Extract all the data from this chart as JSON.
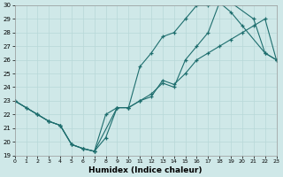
{
  "xlabel": "Humidex (Indice chaleur)",
  "bg_color": "#cfe8e8",
  "line_color": "#1e6e6e",
  "grid_color": "#b8d8d8",
  "xlim": [
    0,
    23
  ],
  "ylim": [
    19,
    30
  ],
  "xticks": [
    0,
    1,
    2,
    3,
    4,
    5,
    6,
    7,
    8,
    9,
    10,
    11,
    12,
    13,
    14,
    15,
    16,
    17,
    18,
    19,
    20,
    21,
    22,
    23
  ],
  "yticks": [
    19,
    20,
    21,
    22,
    23,
    24,
    25,
    26,
    27,
    28,
    29,
    30
  ],
  "line1_x": [
    0,
    1,
    2,
    3,
    4,
    5,
    6,
    7,
    8,
    9,
    10,
    11,
    12,
    13,
    14,
    15,
    16,
    17,
    18,
    19,
    20,
    21,
    22,
    23
  ],
  "line1_y": [
    23.0,
    22.5,
    22.0,
    21.5,
    21.2,
    19.8,
    19.5,
    19.3,
    22.0,
    22.5,
    22.5,
    23.0,
    23.3,
    24.5,
    24.2,
    25.0,
    26.0,
    26.5,
    27.0,
    27.5,
    28.0,
    28.5,
    29.0,
    26.0
  ],
  "line2_x": [
    0,
    1,
    2,
    3,
    4,
    5,
    6,
    7,
    9,
    10,
    11,
    12,
    13,
    14,
    15,
    16,
    17,
    18,
    19,
    20,
    22,
    23
  ],
  "line2_y": [
    23.0,
    22.5,
    22.0,
    21.5,
    21.2,
    19.8,
    19.5,
    19.3,
    22.5,
    22.5,
    25.5,
    26.5,
    27.7,
    28.0,
    29.0,
    30.0,
    30.0,
    30.2,
    29.5,
    28.5,
    26.5,
    26.0
  ],
  "line3_x": [
    0,
    2,
    3,
    4,
    5,
    6,
    7,
    8,
    9,
    10,
    11,
    12,
    13,
    14,
    15,
    16,
    17,
    18,
    19,
    21,
    22,
    23
  ],
  "line3_y": [
    23.0,
    22.0,
    21.5,
    21.2,
    19.8,
    19.5,
    19.3,
    20.3,
    22.5,
    22.5,
    23.0,
    23.5,
    24.3,
    24.0,
    26.0,
    27.0,
    28.0,
    30.2,
    30.2,
    29.0,
    26.5,
    26.0
  ]
}
